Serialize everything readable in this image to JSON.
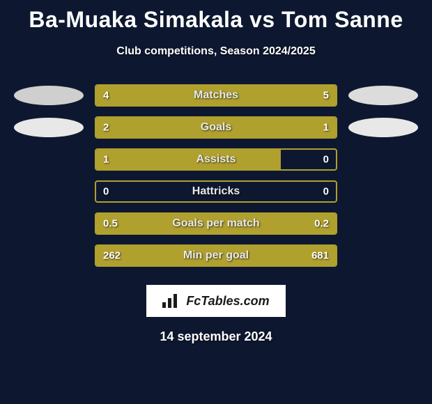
{
  "title": "Ba-Muaka Simakala vs Tom Sanne",
  "subtitle": "Club competitions, Season 2024/2025",
  "date": "14 september 2024",
  "badge_text": "FcTables.com",
  "colors": {
    "background": "#0d1830",
    "bar_fill": "#b0a02e",
    "bar_border": "#b0a02e",
    "oval_left_top": "#cfcfcf",
    "oval_left_bot": "#e8e8e8",
    "oval_right_top": "#dcdcdc",
    "oval_right_bot": "#e8e8e8",
    "text": "#ffffff",
    "badge_bg": "#ffffff",
    "badge_text": "#1a1a1a"
  },
  "rows": [
    {
      "label": "Matches",
      "left_val": "4",
      "right_val": "5",
      "left_pct": 44,
      "right_pct": 56,
      "show_ovals": true
    },
    {
      "label": "Goals",
      "left_val": "2",
      "right_val": "1",
      "left_pct": 67,
      "right_pct": 33,
      "show_ovals": true
    },
    {
      "label": "Assists",
      "left_val": "1",
      "right_val": "0",
      "left_pct": 77,
      "right_pct": 0,
      "show_ovals": false
    },
    {
      "label": "Hattricks",
      "left_val": "0",
      "right_val": "0",
      "left_pct": 0,
      "right_pct": 0,
      "show_ovals": false
    },
    {
      "label": "Goals per match",
      "left_val": "0.5",
      "right_val": "0.2",
      "left_pct": 71,
      "right_pct": 29,
      "show_ovals": false
    },
    {
      "label": "Min per goal",
      "left_val": "262",
      "right_val": "681",
      "left_pct": 28,
      "right_pct": 72,
      "show_ovals": false
    }
  ]
}
